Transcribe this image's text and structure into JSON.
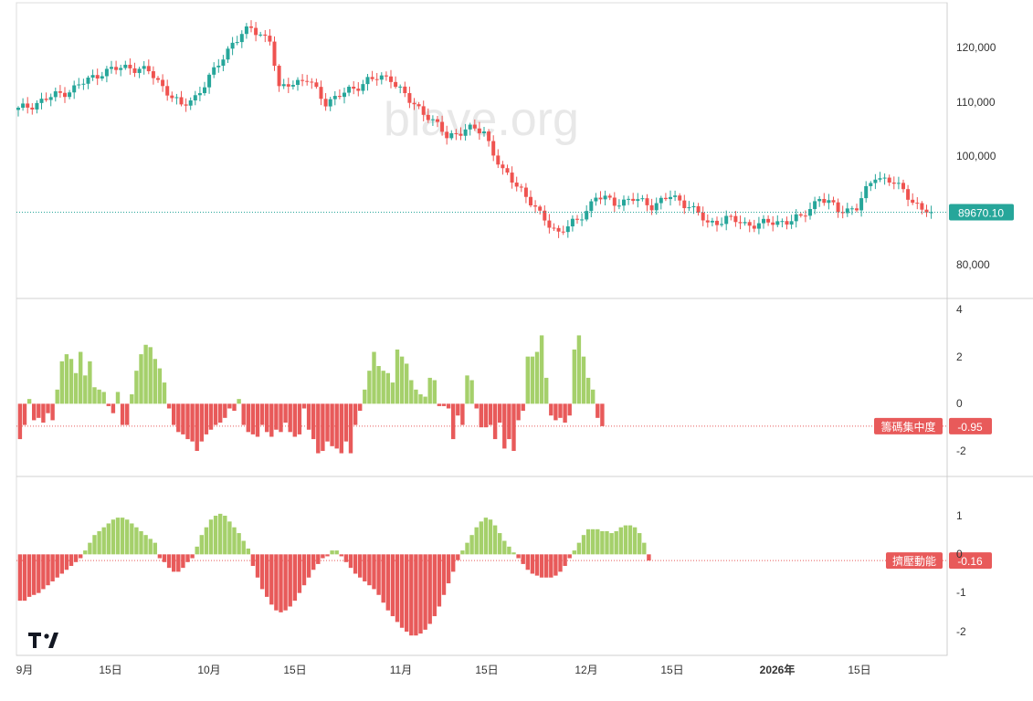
{
  "watermark": "blave.org",
  "colors": {
    "up": "#26a69a",
    "down": "#ef5350",
    "bar_pos": "#a5d06b",
    "bar_neg": "#e85a5a",
    "grid_line": "#d6d6d6",
    "last_line_main": "#26a69a",
    "last_line_ind": "#e85a5a"
  },
  "x_axis_labels": [
    "9月",
    "15日",
    "10月",
    "15日",
    "11月",
    "15日",
    "12月",
    "15日",
    "2026年",
    "15日"
  ],
  "logo": "TV",
  "chart_data": [
    {
      "type": "candlestick",
      "yticks": [
        "120,000",
        "110,000",
        "100,000",
        "90,000",
        "80,000"
      ],
      "ylim": [
        75000,
        126000
      ],
      "last_value_label": "89670.10",
      "last_value": 89670.1,
      "keypoints": [
        [
          0,
          108500
        ],
        [
          6,
          110500
        ],
        [
          12,
          112500
        ],
        [
          18,
          115500
        ],
        [
          24,
          116500
        ],
        [
          28,
          115500
        ],
        [
          32,
          112000
        ],
        [
          35,
          109000
        ],
        [
          38,
          111000
        ],
        [
          42,
          115500
        ],
        [
          46,
          121000
        ],
        [
          50,
          123500
        ],
        [
          54,
          121500
        ],
        [
          56,
          112000
        ],
        [
          58,
          113500
        ],
        [
          62,
          114000
        ],
        [
          66,
          110000
        ],
        [
          70,
          111500
        ],
        [
          75,
          114000
        ],
        [
          80,
          114500
        ],
        [
          84,
          110000
        ],
        [
          88,
          107500
        ],
        [
          92,
          103500
        ],
        [
          96,
          105000
        ],
        [
          100,
          104500
        ],
        [
          104,
          97000
        ],
        [
          108,
          94000
        ],
        [
          112,
          89000
        ],
        [
          116,
          86000
        ],
        [
          120,
          88000
        ],
        [
          124,
          92500
        ],
        [
          128,
          91500
        ],
        [
          132,
          92000
        ],
        [
          136,
          91000
        ],
        [
          140,
          92500
        ],
        [
          144,
          91000
        ],
        [
          148,
          87500
        ],
        [
          152,
          88500
        ],
        [
          156,
          87500
        ],
        [
          160,
          87500
        ],
        [
          164,
          88000
        ],
        [
          168,
          88500
        ],
        [
          172,
          92500
        ],
        [
          176,
          90000
        ],
        [
          180,
          90500
        ],
        [
          184,
          96500
        ],
        [
          188,
          95000
        ],
        [
          192,
          92000
        ],
        [
          194,
          90000
        ],
        [
          196,
          89670
        ]
      ]
    },
    {
      "type": "bar",
      "label": "籌碼集中度",
      "last_value_label": "-0.95",
      "last_value": -0.95,
      "yticks": [
        "4",
        "2",
        "0",
        "-2"
      ],
      "ylim": [
        -3,
        4.2
      ],
      "values": [
        -1.5,
        -0.9,
        0.2,
        -0.7,
        -0.6,
        -0.8,
        -0.4,
        -0.7,
        0.6,
        1.8,
        2.1,
        1.9,
        1.3,
        2.2,
        1.2,
        1.8,
        0.7,
        0.6,
        0.5,
        -0.1,
        -0.4,
        0.5,
        -0.9,
        -0.9,
        0.4,
        1.4,
        2.1,
        2.5,
        2.4,
        1.9,
        1.5,
        0.9,
        -0.2,
        -0.9,
        -1.2,
        -1.3,
        -1.5,
        -1.6,
        -2.0,
        -1.6,
        -1.3,
        -1.1,
        -0.9,
        -0.8,
        -0.6,
        -0.2,
        -0.3,
        0.2,
        -0.9,
        -1.2,
        -1.3,
        -1.4,
        -0.9,
        -1.2,
        -1.4,
        -1.1,
        -1.2,
        -0.8,
        -1.2,
        -1.4,
        -1.3,
        -0.2,
        -1.1,
        -1.5,
        -2.1,
        -2.0,
        -1.6,
        -1.8,
        -1.9,
        -2.1,
        -1.6,
        -2.1,
        -0.9,
        -0.3,
        0.6,
        1.4,
        2.2,
        1.6,
        1.4,
        1.3,
        0.9,
        2.3,
        2.0,
        1.7,
        1.0,
        0.6,
        0.4,
        0.3,
        1.1,
        1.0,
        -0.1,
        -0.1,
        -0.2,
        -1.5,
        -0.5,
        -0.9,
        1.2,
        1.0,
        -0.2,
        -1.0,
        -1.0,
        -0.9,
        -1.5,
        -0.8,
        -1.9,
        -1.5,
        -2.0,
        -0.7,
        -0.3,
        2.0,
        2.0,
        2.2,
        2.9,
        1.1,
        -0.5,
        -0.7,
        -0.6,
        -0.8,
        -0.5,
        2.3,
        2.9,
        2.0,
        1.1,
        0.6,
        -0.6,
        -0.95
      ]
    },
    {
      "type": "bar",
      "label": "擠壓動能",
      "last_value_label": "-0.16",
      "last_value": -0.16,
      "yticks": [
        "1",
        "0",
        "-1",
        "-2"
      ],
      "ylim": [
        -2.6,
        1.95
      ],
      "values": [
        -1.2,
        -1.2,
        -1.1,
        -1.05,
        -1.0,
        -0.9,
        -0.8,
        -0.7,
        -0.6,
        -0.5,
        -0.4,
        -0.3,
        -0.2,
        -0.1,
        0.1,
        0.3,
        0.5,
        0.6,
        0.7,
        0.8,
        0.9,
        0.95,
        0.95,
        0.9,
        0.8,
        0.7,
        0.6,
        0.5,
        0.4,
        0.3,
        -0.1,
        -0.2,
        -0.35,
        -0.45,
        -0.45,
        -0.35,
        -0.2,
        -0.1,
        0.2,
        0.5,
        0.7,
        0.9,
        1.0,
        1.05,
        1.0,
        0.85,
        0.7,
        0.55,
        0.35,
        0.15,
        -0.3,
        -0.6,
        -0.9,
        -1.1,
        -1.3,
        -1.45,
        -1.5,
        -1.45,
        -1.35,
        -1.2,
        -1.0,
        -0.8,
        -0.6,
        -0.4,
        -0.25,
        -0.1,
        -0.05,
        0.1,
        0.1,
        -0.05,
        -0.2,
        -0.35,
        -0.5,
        -0.6,
        -0.7,
        -0.8,
        -0.9,
        -1.05,
        -1.25,
        -1.45,
        -1.6,
        -1.75,
        -1.9,
        -2.0,
        -2.1,
        -2.1,
        -2.05,
        -1.95,
        -1.8,
        -1.6,
        -1.35,
        -1.05,
        -0.75,
        -0.45,
        -0.15,
        0.1,
        0.3,
        0.5,
        0.7,
        0.85,
        0.95,
        0.9,
        0.75,
        0.55,
        0.35,
        0.2,
        0.05,
        -0.1,
        -0.25,
        -0.4,
        -0.5,
        -0.55,
        -0.6,
        -0.6,
        -0.6,
        -0.55,
        -0.45,
        -0.3,
        -0.1,
        0.1,
        0.3,
        0.5,
        0.65,
        0.65,
        0.65,
        0.6,
        0.6,
        0.55,
        0.6,
        0.7,
        0.75,
        0.75,
        0.7,
        0.55,
        0.3,
        -0.16
      ]
    }
  ]
}
